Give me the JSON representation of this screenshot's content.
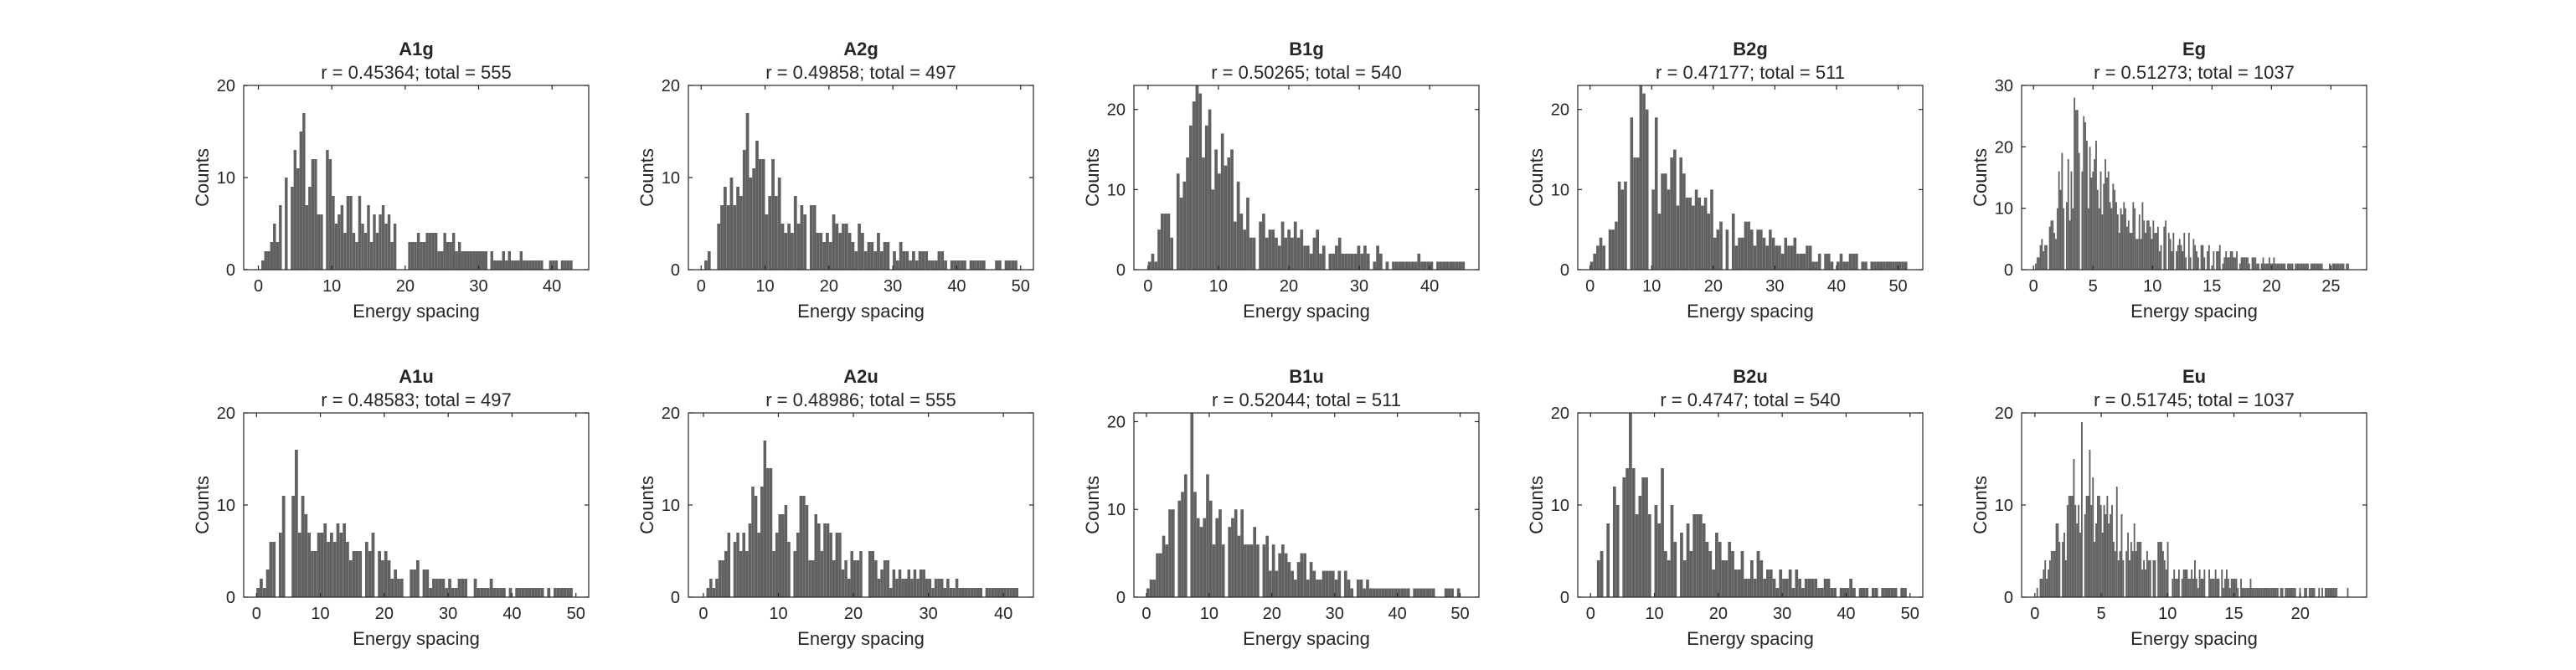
{
  "bar_color": "#616161",
  "chart_data": [
    {
      "type": "bar",
      "title": "A1g",
      "subtitle": "r = 0.45364; total = 555",
      "xlabel": "Energy spacing",
      "ylabel": "Counts",
      "xlim": [
        -2,
        45
      ],
      "ylim": [
        0,
        20
      ],
      "xticks": [
        0,
        10,
        20,
        30,
        40
      ],
      "yticks": [
        0,
        10,
        20
      ],
      "bin_width": 0.4,
      "peak": 6,
      "decay": 13,
      "max": 17,
      "values": []
    },
    {
      "type": "bar",
      "title": "A2g",
      "subtitle": "r = 0.49858; total = 497",
      "xlabel": "Energy spacing",
      "ylabel": "Counts",
      "xlim": [
        -2,
        52
      ],
      "ylim": [
        0,
        20
      ],
      "xticks": [
        0,
        10,
        20,
        30,
        40,
        50
      ],
      "yticks": [
        0,
        10,
        20
      ],
      "bin_width": 0.5,
      "peak": 7,
      "decay": 14,
      "max": 17,
      "values": []
    },
    {
      "type": "bar",
      "title": "B1g",
      "subtitle": "r = 0.50265; total = 540",
      "xlabel": "Energy spacing",
      "ylabel": "Counts",
      "xlim": [
        -2,
        47
      ],
      "ylim": [
        0,
        23
      ],
      "xticks": [
        0,
        10,
        20,
        30,
        40
      ],
      "yticks": [
        0,
        10,
        20
      ],
      "bin_width": 0.45,
      "peak": 7,
      "decay": 12,
      "max": 23,
      "values": []
    },
    {
      "type": "bar",
      "title": "B2g",
      "subtitle": "r = 0.47177; total = 511",
      "xlabel": "Energy spacing",
      "ylabel": "Counts",
      "xlim": [
        -2,
        54
      ],
      "ylim": [
        0,
        23
      ],
      "xticks": [
        0,
        10,
        20,
        30,
        40,
        50
      ],
      "yticks": [
        0,
        10,
        20
      ],
      "bin_width": 0.5,
      "peak": 8,
      "decay": 14,
      "max": 23,
      "values": []
    },
    {
      "type": "bar",
      "title": "Eg",
      "subtitle": "r = 0.51273; total = 1037",
      "xlabel": "Energy spacing",
      "ylabel": "Counts",
      "xlim": [
        -1,
        28
      ],
      "ylim": [
        0,
        30
      ],
      "xticks": [
        0,
        5,
        10,
        15,
        20,
        25
      ],
      "yticks": [
        0,
        10,
        20,
        30
      ],
      "bin_width": 0.13,
      "peak": 3.5,
      "decay": 6,
      "max": 28,
      "values": []
    },
    {
      "type": "bar",
      "title": "A1u",
      "subtitle": "r = 0.48583; total = 497",
      "xlabel": "Energy spacing",
      "ylabel": "Counts",
      "xlim": [
        -2,
        52
      ],
      "ylim": [
        0,
        20
      ],
      "xticks": [
        0,
        10,
        20,
        30,
        40,
        50
      ],
      "yticks": [
        0,
        10,
        20
      ],
      "bin_width": 0.5,
      "peak": 6,
      "decay": 14,
      "max": 16,
      "values": []
    },
    {
      "type": "bar",
      "title": "A2u",
      "subtitle": "r = 0.48986; total = 555",
      "xlabel": "Energy spacing",
      "ylabel": "Counts",
      "xlim": [
        -2,
        44
      ],
      "ylim": [
        0,
        20
      ],
      "xticks": [
        0,
        10,
        20,
        30,
        40
      ],
      "yticks": [
        0,
        10,
        20
      ],
      "bin_width": 0.4,
      "peak": 8,
      "decay": 12,
      "max": 17,
      "values": []
    },
    {
      "type": "bar",
      "title": "B1u",
      "subtitle": "r = 0.52044; total = 511",
      "xlabel": "Energy spacing",
      "ylabel": "Counts",
      "xlim": [
        -2,
        53
      ],
      "ylim": [
        0,
        21
      ],
      "xticks": [
        0,
        10,
        20,
        30,
        40,
        50
      ],
      "yticks": [
        0,
        10,
        20
      ],
      "bin_width": 0.5,
      "peak": 7,
      "decay": 12,
      "max": 21,
      "values": []
    },
    {
      "type": "bar",
      "title": "B2u",
      "subtitle": "r = 0.4747; total = 540",
      "xlabel": "Energy spacing",
      "ylabel": "Counts",
      "xlim": [
        -2,
        52
      ],
      "ylim": [
        0,
        20
      ],
      "xticks": [
        0,
        10,
        20,
        30,
        40,
        50
      ],
      "yticks": [
        0,
        10,
        20
      ],
      "bin_width": 0.5,
      "peak": 6,
      "decay": 14,
      "max": 20,
      "values": []
    },
    {
      "type": "bar",
      "title": "Eu",
      "subtitle": "r = 0.51745; total = 1037",
      "xlabel": "Energy spacing",
      "ylabel": "Counts",
      "xlim": [
        -1,
        25
      ],
      "ylim": [
        0,
        20
      ],
      "xticks": [
        0,
        5,
        10,
        15,
        20
      ],
      "yticks": [
        0,
        10,
        20
      ],
      "bin_width": 0.12,
      "peak": 3.5,
      "decay": 5.5,
      "max": 19,
      "values": []
    }
  ]
}
